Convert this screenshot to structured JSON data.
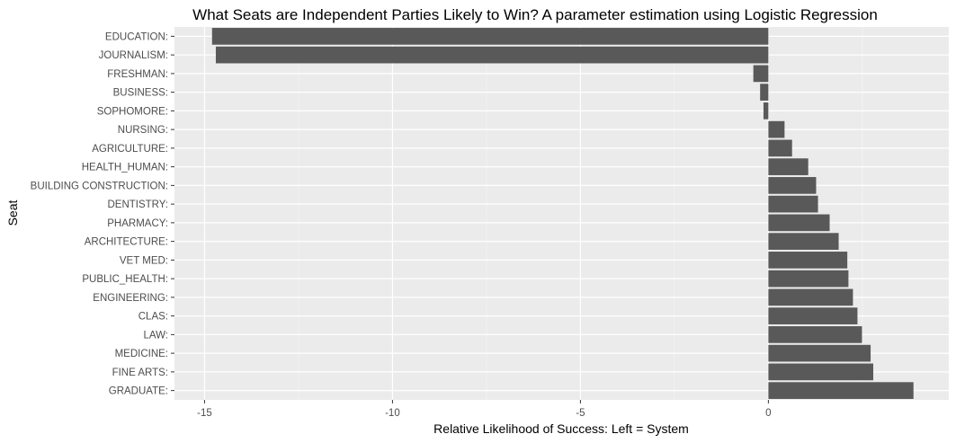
{
  "chart_data": {
    "type": "bar",
    "orientation": "horizontal",
    "title": "What Seats are Independent Parties Likely to Win? A parameter estimation using Logistic Regression",
    "xlabel": "Relative Likelihood of Success: Left = System",
    "ylabel": "Seat",
    "categories": [
      "EDUCATION:",
      "JOURNALISM:",
      "FRESHMAN:",
      "BUSINESS:",
      "SOPHOMORE:",
      "NURSING:",
      "AGRICULTURE:",
      "HEALTH_HUMAN:",
      "BUILDING CONSTRUCTION:",
      "DENTISTRY:",
      "PHARMACY:",
      "ARCHITECTURE:",
      "VET MED:",
      "PUBLIC_HEALTH:",
      "ENGINEERING:",
      "CLAS:",
      "LAW:",
      "MEDICINE:",
      "FINE ARTS:",
      "GRADUATE:"
    ],
    "values": [
      -14.8,
      -14.7,
      -0.4,
      -0.22,
      -0.13,
      0.43,
      0.63,
      1.06,
      1.27,
      1.32,
      1.63,
      1.87,
      2.1,
      2.13,
      2.25,
      2.37,
      2.49,
      2.72,
      2.79,
      3.86
    ],
    "xlim": [
      -15.8,
      4.8
    ],
    "xticks": [
      -15,
      -10,
      -5,
      0
    ],
    "xtick_labels": [
      "-15",
      "-10",
      "-5",
      "0"
    ],
    "grid": true,
    "colors": {
      "bar": "#595959",
      "panel": "#ebebeb",
      "grid_major": "#ffffff",
      "grid_minor": "#f5f5f5",
      "tick_text": "#4d4d4d"
    }
  }
}
